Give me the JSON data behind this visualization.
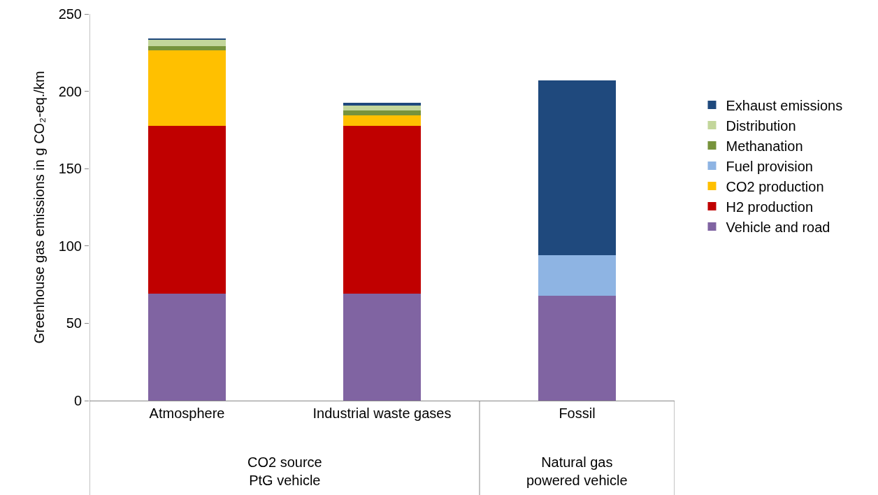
{
  "chart_data": {
    "type": "bar",
    "stacked": true,
    "ylabel": "Greenhouse gas emissions in g CO₂-eq./km",
    "categories": [
      "Atmosphere",
      "Industrial waste gases",
      "Fossil"
    ],
    "series": [
      {
        "name": "Vehicle and road",
        "color": "#8064a2",
        "values": [
          69,
          69,
          68
        ]
      },
      {
        "name": "H2 production",
        "color": "#c00000",
        "values": [
          108.7,
          108.7,
          null
        ]
      },
      {
        "name": "CO2 production",
        "color": "#ffc000",
        "values": [
          48.8,
          6.7,
          null
        ]
      },
      {
        "name": "Fuel provision",
        "color": "#8eb4e3",
        "values": [
          null,
          null,
          26
        ]
      },
      {
        "name": "Methanation",
        "color": "#77933c",
        "values": [
          2.7,
          3.2,
          null
        ]
      },
      {
        "name": "Distribution",
        "color": "#c3d69b",
        "values": [
          3.9,
          3.3,
          null
        ]
      },
      {
        "name": "Exhaust emissions",
        "color": "#1f497d",
        "values": [
          0.9,
          1.5,
          113
        ]
      }
    ],
    "ylim": [
      0,
      250
    ],
    "yticks": [
      0,
      50,
      100,
      150,
      200,
      250
    ],
    "grid": false,
    "legend": "right",
    "annotations": [
      "CO2 source\nPtG vehicle",
      "Natural gas\npowered vehicle"
    ]
  }
}
